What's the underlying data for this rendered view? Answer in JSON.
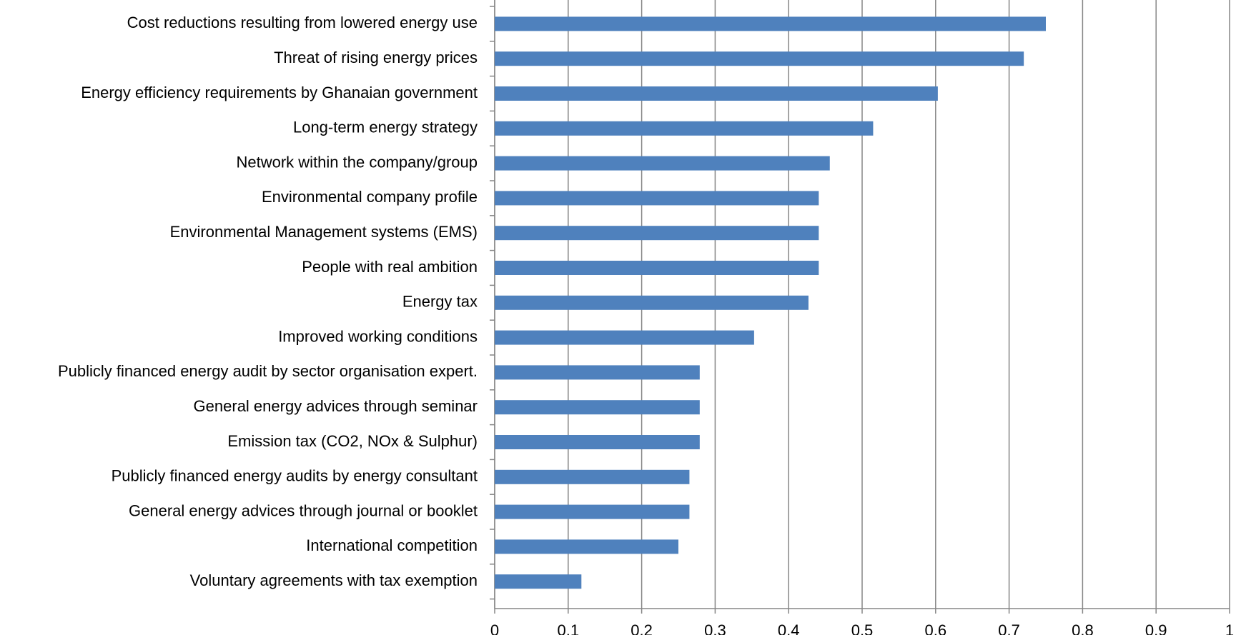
{
  "chart_data": {
    "type": "bar",
    "orientation": "horizontal",
    "categories": [
      "Cost reductions resulting from lowered energy use",
      "Threat of rising energy prices",
      "Energy efficiency requirements by Ghanaian government",
      "Long-term energy strategy",
      "Network within the company/group",
      "Environmental company profile",
      "Environmental Management  systems (EMS)",
      "People with real ambition",
      "Energy tax",
      "Improved working conditions",
      "Publicly financed energy audit by sector organisation expert.",
      "General energy advices through seminar",
      "Emission tax (CO2, NOx & Sulphur)",
      "Publicly financed energy audits by energy consultant",
      "General energy advices through journal or booklet",
      "International competition",
      "Voluntary agreements with tax exemption"
    ],
    "values": [
      0.75,
      0.72,
      0.603,
      0.515,
      0.456,
      0.441,
      0.441,
      0.441,
      0.427,
      0.353,
      0.279,
      0.279,
      0.279,
      0.265,
      0.265,
      0.25,
      0.118
    ],
    "color": "#4f81bd",
    "xlim": [
      0,
      1
    ],
    "xticks": [
      0,
      0.1,
      0.2,
      0.3,
      0.4,
      0.5,
      0.6,
      0.7,
      0.8,
      0.9,
      1
    ],
    "grid": true
  }
}
